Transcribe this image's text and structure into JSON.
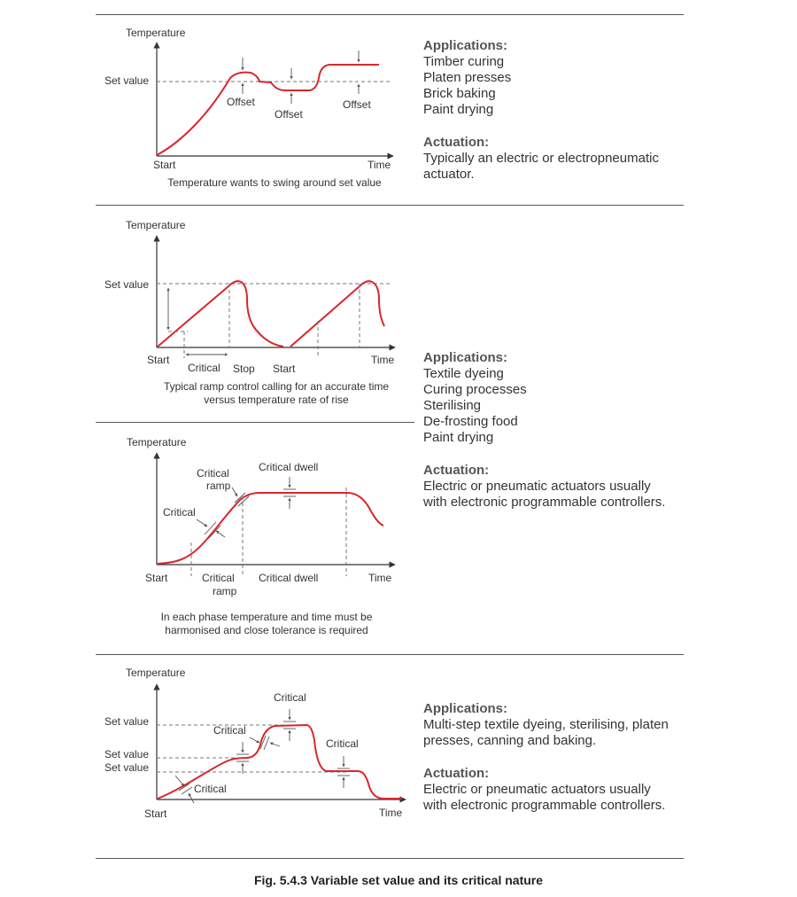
{
  "panel1": {
    "y_axis_label": "Temperature",
    "set_value_label": "Set value",
    "offset_labels": [
      "Offset",
      "Offset",
      "Offset"
    ],
    "x_start_label": "Start",
    "x_end_label": "Time",
    "caption": "Temperature wants to swing around set value",
    "applications_heading": "Applications:",
    "applications": [
      "Timber curing",
      "Platen presses",
      "Brick baking",
      "Paint drying"
    ],
    "actuation_heading": "Actuation:",
    "actuation_lines": [
      "Typically an electric or electropneumatic",
      "actuator."
    ]
  },
  "panel2": {
    "y_axis_label": "Temperature",
    "set_value_label": "Set value",
    "x_start_label": "Start",
    "critical_label": "Critical",
    "stop_label": "Stop",
    "start2_label": "Start",
    "x_end_label": "Time",
    "caption_lines": [
      "Typical ramp control calling for an accurate time",
      "versus temperature rate of rise"
    ]
  },
  "panel3": {
    "y_axis_label": "Temperature",
    "critical_dwell_top": "Critical dwell",
    "critical_ramp_top_lines": [
      "Critical",
      "ramp"
    ],
    "critical_left": "Critical",
    "x_start_label": "Start",
    "critical_ramp_bottom_lines": [
      "Critical",
      "ramp"
    ],
    "critical_dwell_bottom": "Critical dwell",
    "x_end_label": "Time",
    "caption_lines": [
      "In each phase temperature and time must be",
      "harmonised and close tolerance is required"
    ]
  },
  "side_middle": {
    "applications_heading": "Applications:",
    "applications": [
      "Textile dyeing",
      "Curing processes",
      "Sterilising",
      "De-frosting food",
      "Paint drying"
    ],
    "actuation_heading": "Actuation:",
    "actuation_lines": [
      "Electric or pneumatic actuators usually",
      "with electronic programmable controllers."
    ]
  },
  "panel4": {
    "y_axis_label": "Temperature",
    "set_value_labels": [
      "Set value",
      "Set value",
      "Set value"
    ],
    "critical_labels": [
      "Critical",
      "Critical",
      "Critical",
      "Critical"
    ],
    "x_start_label": "Start",
    "x_end_label": "Time",
    "applications_heading": "Applications:",
    "applications_lines": [
      "Multi-step textile dyeing, sterilising, platen",
      "presses, canning and baking."
    ],
    "actuation_heading": "Actuation:",
    "actuation_lines": [
      "Electric or pneumatic actuators usually",
      "with electronic programmable controllers."
    ]
  },
  "figure_caption": "Fig. 5.4.3 Variable set value and its critical nature",
  "colors": {
    "curve": "#d9262c",
    "axis": "#333333",
    "dashed": "#777777"
  }
}
